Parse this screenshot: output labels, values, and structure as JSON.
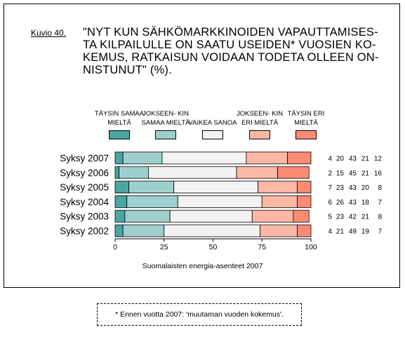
{
  "figure_label": "Kuvio 40.",
  "footnote": "* Ennen vuotta 2007: 'muutaman vuoden kokemus'.",
  "legend": [
    {
      "label": "TÄYSIN SAMAA MIELTÄ",
      "color": "#4aa6a2"
    },
    {
      "label": "JOKSEEN- KIN SAMAA MIELTÄ",
      "color": "#9fcfcc"
    },
    {
      "label": "VAIKEA SANOA",
      "color": "#f2f2f2"
    },
    {
      "label": "JOKSEEN- KIN ERI MIELTÄ",
      "color": "#fcb8a4"
    },
    {
      "label": "TÄYSIN ERI MIELTÄ",
      "color": "#fb8c74"
    }
  ],
  "chart_data": {
    "type": "bar",
    "orientation": "horizontal",
    "stacked": true,
    "title": "\"NYT KUN SÄHKÖMARKKINOIDEN VAPAUTTAMISESTA KILPAILULLE ON SAATU USEIDEN* VUOSIEN KOKEMUS, RATKAISUN VOIDAAN TODETA OLLEEN ONNISTUNUT\" (%).",
    "title_lines": [
      "\"NYT KUN SÄHKÖMARKKINOIDEN VAPAUTTAMISES-",
      "TA KILPAILULLE ON SAATU USEIDEN* VUOSIEN KO-",
      "KEMUS, RATKAISUN VOIDAAN TODETA OLLEEN ON-",
      "NISTUNUT\" (%)."
    ],
    "xlabel": "Suomalaisten energia-asenteet 2007",
    "xlim": [
      0,
      100
    ],
    "xticks": [
      "0",
      "25",
      "50",
      "75",
      "100"
    ],
    "categories": [
      "Syksy 2007",
      "Syksy 2006",
      "Syksy 2005",
      "Syksy 2004",
      "Syksy 2003",
      "Syksy 2002"
    ],
    "series": [
      {
        "name": "TÄYSIN SAMAA MIELTÄ",
        "values": [
          4,
          2,
          7,
          6,
          5,
          4
        ],
        "color": "#4aa6a2"
      },
      {
        "name": "JOKSEEN- KIN SAMAA MIELTÄ",
        "values": [
          20,
          15,
          23,
          26,
          23,
          21
        ],
        "color": "#9fcfcc"
      },
      {
        "name": "VAIKEA SANOA",
        "values": [
          43,
          45,
          43,
          43,
          42,
          49
        ],
        "color": "#f2f2f2"
      },
      {
        "name": "JOKSEEN- KIN ERI MIELTÄ",
        "values": [
          21,
          21,
          20,
          18,
          21,
          19
        ],
        "color": "#fcb8a4"
      },
      {
        "name": "TÄYSIN ERI MIELTÄ",
        "values": [
          12,
          16,
          8,
          7,
          8,
          7
        ],
        "color": "#fb8c74"
      }
    ],
    "grid": false,
    "legend_position": "top"
  }
}
